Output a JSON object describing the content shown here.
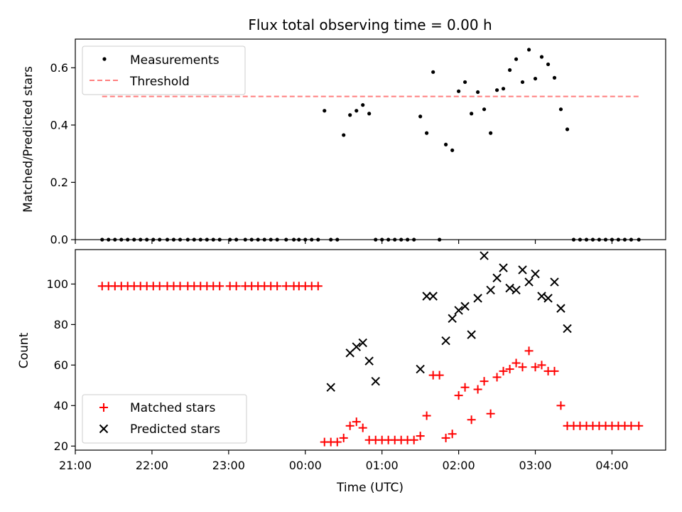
{
  "chart_data": [
    {
      "type": "scatter",
      "title": "Flux total observing time = 0.00 h",
      "xlabel": "",
      "ylabel": "Matched/Predicted stars",
      "ylim": [
        0,
        0.7
      ],
      "yticks": [
        0.0,
        0.2,
        0.4,
        0.6
      ],
      "ytick_labels": [
        "0.0",
        "0.2",
        "0.4",
        "0.6"
      ],
      "x_unit": "hours_from_midnight_UTC",
      "legend": "top-left",
      "threshold": {
        "name": "Threshold",
        "value": 0.5,
        "x_range": [
          -2.65,
          4.35
        ],
        "color": "#ff7f7f"
      },
      "series": [
        {
          "name": "Measurements",
          "color": "#000000",
          "x": [
            -2.65,
            -2.567,
            -2.483,
            -2.4,
            -2.317,
            -2.233,
            -2.15,
            -2.067,
            -1.983,
            -1.9,
            -1.8,
            -1.717,
            -1.633,
            -1.533,
            -1.45,
            -1.367,
            -1.283,
            -1.2,
            -1.117,
            -0.983,
            -0.9,
            -0.783,
            -0.7,
            -0.617,
            -0.533,
            -0.45,
            -0.367,
            -0.25,
            -0.15,
            -0.083,
            0,
            0.083,
            0.167,
            0.25,
            0.333,
            0.417,
            0.5,
            0.583,
            0.667,
            0.75,
            0.833,
            0.917,
            1.0,
            1.083,
            1.167,
            1.25,
            1.333,
            1.417,
            1.5,
            1.583,
            1.667,
            1.75,
            1.833,
            1.917,
            2.0,
            2.083,
            2.167,
            2.25,
            2.333,
            2.417,
            2.5,
            2.583,
            2.667,
            2.75,
            2.833,
            2.917,
            3.0,
            3.083,
            3.167,
            3.25,
            3.333,
            3.417,
            3.5,
            3.583,
            3.667,
            3.75,
            3.833,
            3.917,
            4.0,
            4.083,
            4.167,
            4.25,
            4.35
          ],
          "values": [
            0,
            0,
            0,
            0,
            0,
            0,
            0,
            0,
            0,
            0,
            0,
            0,
            0,
            0,
            0,
            0,
            0,
            0,
            0,
            0,
            0,
            0,
            0,
            0,
            0,
            0,
            0,
            0,
            0,
            0,
            0,
            0,
            0,
            0.45,
            0,
            0,
            0.365,
            0.435,
            0.45,
            0.47,
            0.44,
            0,
            0,
            0,
            0,
            0,
            0,
            0,
            0.43,
            0.372,
            0.585,
            0,
            0.332,
            0.312,
            0.518,
            0.55,
            0.44,
            0.515,
            0.455,
            0.372,
            0.522,
            0.527,
            0.592,
            0.63,
            0.55,
            0.663,
            0.562,
            0.638,
            0.612,
            0.565,
            0.455,
            0.385,
            0,
            0,
            0,
            0,
            0,
            0,
            0,
            0,
            0,
            0,
            0
          ]
        }
      ]
    },
    {
      "type": "scatter",
      "title": "",
      "xlabel": "Time (UTC)",
      "ylabel": "Count",
      "xlim": [
        -3.0,
        4.7
      ],
      "ylim": [
        18,
        117
      ],
      "yticks": [
        20,
        40,
        60,
        80,
        100
      ],
      "ytick_labels": [
        "20",
        "40",
        "60",
        "80",
        "100"
      ],
      "xticks": [
        -3,
        -2,
        -1,
        0,
        1,
        2,
        3,
        4
      ],
      "xtick_labels": [
        "21:00",
        "22:00",
        "23:00",
        "00:00",
        "01:00",
        "02:00",
        "03:00",
        "04:00"
      ],
      "x_unit": "hours_from_midnight_UTC",
      "legend": "bottom-left",
      "series": [
        {
          "name": "Matched stars",
          "color": "#ff0000",
          "marker": "+",
          "x": [
            -2.65,
            -2.567,
            -2.483,
            -2.4,
            -2.317,
            -2.233,
            -2.15,
            -2.067,
            -1.983,
            -1.9,
            -1.8,
            -1.717,
            -1.633,
            -1.533,
            -1.45,
            -1.367,
            -1.283,
            -1.2,
            -1.117,
            -0.983,
            -0.9,
            -0.783,
            -0.7,
            -0.617,
            -0.533,
            -0.45,
            -0.367,
            -0.25,
            -0.15,
            -0.083,
            0,
            0.083,
            0.167,
            0.25,
            0.333,
            0.417,
            0.5,
            0.583,
            0.667,
            0.75,
            0.833,
            0.917,
            1.0,
            1.083,
            1.167,
            1.25,
            1.333,
            1.417,
            1.5,
            1.583,
            1.667,
            1.75,
            1.833,
            1.917,
            2.0,
            2.083,
            2.167,
            2.25,
            2.333,
            2.417,
            2.5,
            2.583,
            2.667,
            2.75,
            2.833,
            2.917,
            3.0,
            3.083,
            3.167,
            3.25,
            3.333,
            3.417,
            3.5,
            3.583,
            3.667,
            3.75,
            3.833,
            3.917,
            4.0,
            4.083,
            4.167,
            4.25,
            4.35
          ],
          "values": [
            99,
            99,
            99,
            99,
            99,
            99,
            99,
            99,
            99,
            99,
            99,
            99,
            99,
            99,
            99,
            99,
            99,
            99,
            99,
            99,
            99,
            99,
            99,
            99,
            99,
            99,
            99,
            99,
            99,
            99,
            99,
            99,
            99,
            22,
            22,
            22,
            24,
            30,
            32,
            29,
            23,
            23,
            23,
            23,
            23,
            23,
            23,
            23,
            25,
            35,
            55,
            55,
            24,
            26,
            45,
            49,
            33,
            48,
            52,
            36,
            54,
            57,
            58,
            61,
            59,
            67,
            59,
            60,
            57,
            57,
            40,
            30,
            30,
            30,
            30,
            30,
            30,
            30,
            30,
            30,
            30,
            30,
            30
          ]
        },
        {
          "name": "Predicted stars",
          "color": "#000000",
          "marker": "x",
          "x": [
            0.333,
            0.583,
            0.667,
            0.75,
            0.833,
            0.917,
            1.5,
            1.583,
            1.667,
            1.833,
            1.917,
            2.0,
            2.083,
            2.167,
            2.25,
            2.333,
            2.417,
            2.5,
            2.583,
            2.667,
            2.75,
            2.833,
            2.917,
            3.0,
            3.083,
            3.167,
            3.25,
            3.333,
            3.417
          ],
          "values": [
            49,
            66,
            69,
            71,
            62,
            52,
            58,
            94,
            94,
            72,
            83,
            87,
            89,
            75,
            93,
            114,
            97,
            103,
            108,
            98,
            97,
            107,
            101,
            105,
            94,
            93,
            101,
            88,
            78
          ]
        }
      ]
    }
  ]
}
